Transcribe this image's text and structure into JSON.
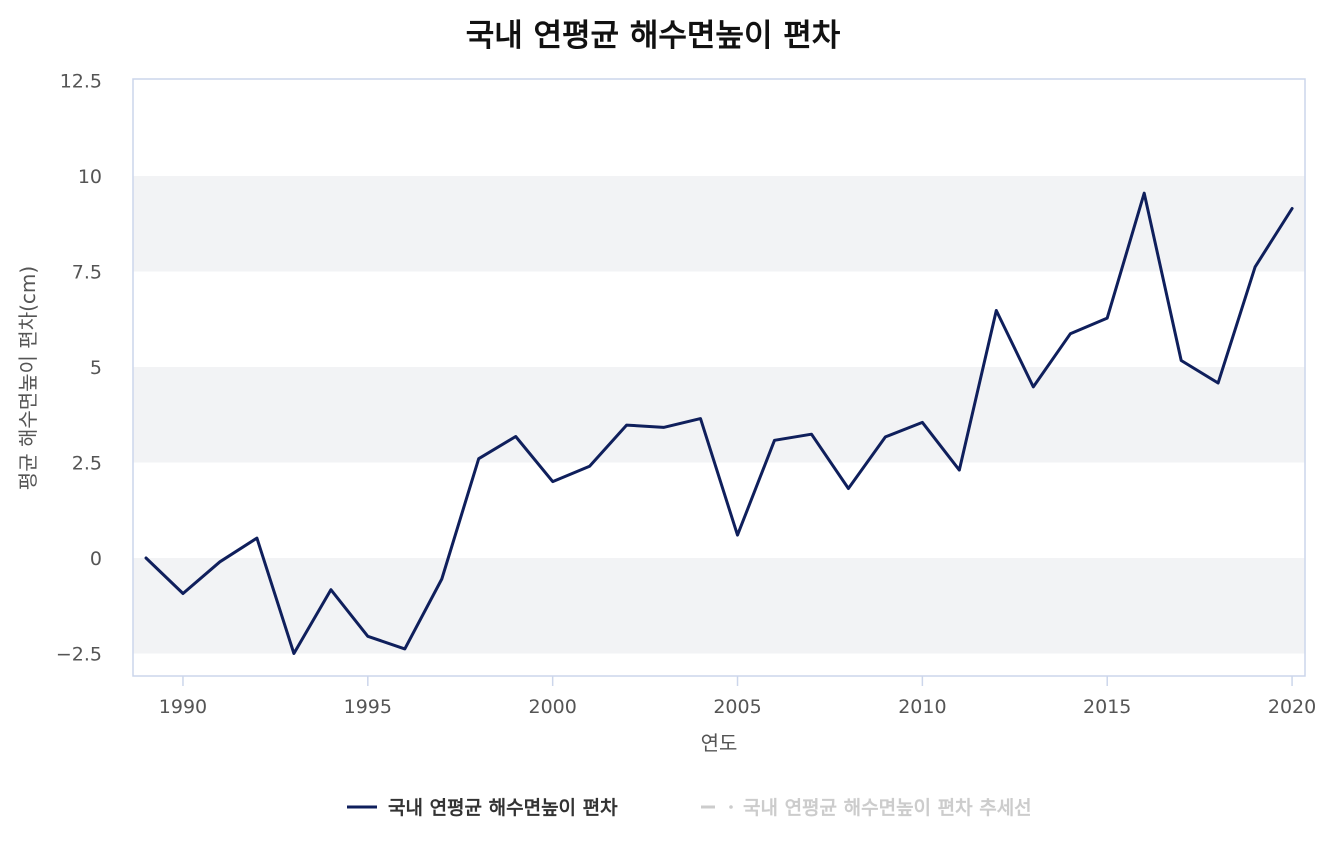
{
  "chart_data": {
    "type": "line",
    "title": "국내 연평균 해수면높이 편차",
    "xlabel": "연도",
    "ylabel": "평균 해수면높이 편차(cm)",
    "xlim": [
      1988.7,
      2020.4
    ],
    "ylim": [
      -3.1,
      12.5
    ],
    "x_ticks": [
      1990,
      1995,
      2000,
      2005,
      2010,
      2015,
      2020
    ],
    "y_ticks": [
      -2.5,
      0,
      2.5,
      5,
      7.5,
      10,
      12.5
    ],
    "y_tick_labels": [
      "−2.5",
      "0",
      "2.5",
      "5",
      "7.5",
      "10",
      "12.5"
    ],
    "bands": [
      [
        -2.5,
        0
      ],
      [
        2.5,
        5
      ],
      [
        7.5,
        10
      ]
    ],
    "grid": false,
    "legend_position": "bottom-center",
    "series": [
      {
        "name": "국내 연평균 해수면높이 편차",
        "color": "#0f1f5c",
        "visible": true,
        "x": [
          1989,
          1990,
          1991,
          1992,
          1993,
          1994,
          1995,
          1996,
          1997,
          1998,
          1999,
          2000,
          2001,
          2002,
          2003,
          2004,
          2005,
          2006,
          2007,
          2008,
          2009,
          2010,
          2011,
          2012,
          2013,
          2014,
          2015,
          2016,
          2017,
          2018,
          2019,
          2020
        ],
        "values": [
          0.0,
          -0.93,
          -0.1,
          0.52,
          -2.5,
          -0.83,
          -2.05,
          -2.38,
          -0.55,
          2.6,
          3.18,
          2.0,
          2.4,
          3.48,
          3.42,
          3.65,
          0.6,
          3.08,
          3.24,
          1.82,
          3.17,
          3.55,
          2.3,
          6.48,
          4.48,
          5.87,
          6.28,
          9.55,
          5.17,
          4.58,
          7.62,
          9.15
        ]
      },
      {
        "name": "국내 연평균 해수면높이 편차 추세선",
        "color": "#cccccc",
        "visible": false,
        "x": [],
        "values": []
      }
    ]
  },
  "colors": {
    "band": "#f2f3f5",
    "plot_border": "#ccd6eb",
    "tick_text": "#555555",
    "legend_hidden": "#cccccc",
    "legend_active": "#333333"
  }
}
